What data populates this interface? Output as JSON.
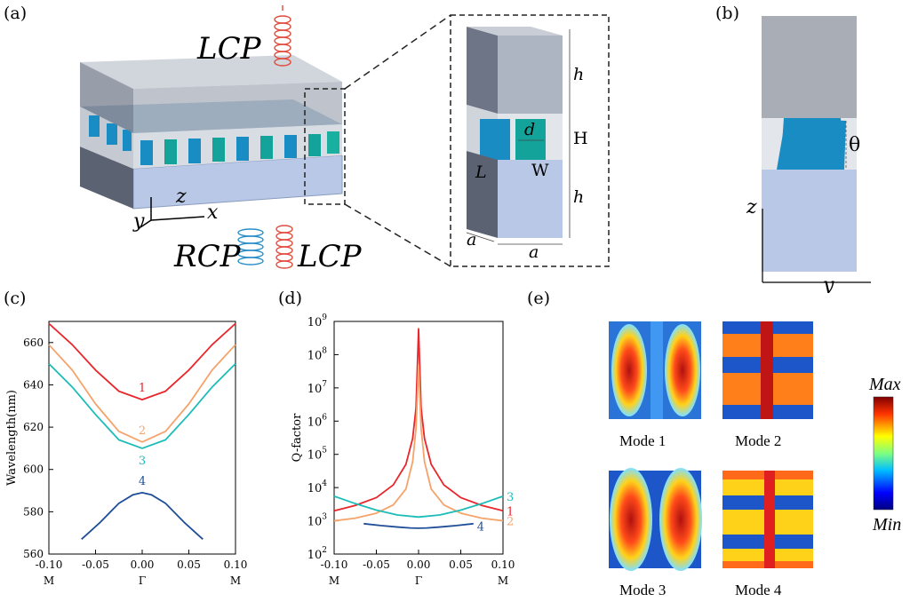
{
  "panels": {
    "a": "(a)",
    "b": "(b)",
    "c": "(c)",
    "d": "(d)",
    "e": "(e)"
  },
  "panel_a": {
    "top_light": "LCP",
    "bottom_left_light": "RCP",
    "bottom_right_light": "LCP",
    "axis_z": "z",
    "axis_x": "x",
    "axis_y": "y",
    "inset_labels": {
      "h_top": "h",
      "H": "H",
      "h_bottom": "h",
      "d": "d",
      "L": "L",
      "W": "W",
      "a_side": "a",
      "a_front": "a"
    }
  },
  "panel_b": {
    "theta": "θ",
    "axis_z": "z",
    "axis_y": "y"
  },
  "chart_data": [
    {
      "panel": "c",
      "type": "line",
      "title": "",
      "xlabel": "",
      "ylabel": "Wavelength(nm)",
      "xlim": [
        -0.1,
        0.1
      ],
      "ylim": [
        560,
        670
      ],
      "x_ticks": [
        -0.1,
        -0.05,
        0.0,
        0.05,
        0.1
      ],
      "x_tick_labels": [
        "-0.10",
        "-0.05",
        "0.00",
        "0.05",
        "0.10"
      ],
      "x_symmetry_labels": [
        "M",
        "Γ",
        "M"
      ],
      "y_ticks": [
        560,
        580,
        600,
        620,
        640,
        660
      ],
      "y_tick_labels": [
        "560",
        "580",
        "600",
        "620",
        "640",
        "660"
      ],
      "series": [
        {
          "name": "1",
          "color": "#e8262b",
          "x": [
            -0.1,
            -0.075,
            -0.05,
            -0.025,
            0,
            0.025,
            0.05,
            0.075,
            0.1
          ],
          "y": [
            669,
            659,
            647,
            637,
            633,
            637,
            647,
            659,
            669
          ]
        },
        {
          "name": "2",
          "color": "#f5a36b",
          "x": [
            -0.1,
            -0.075,
            -0.05,
            -0.025,
            0,
            0.025,
            0.05,
            0.075,
            0.1
          ],
          "y": [
            659,
            647,
            631,
            618,
            613,
            618,
            631,
            647,
            659
          ]
        },
        {
          "name": "3",
          "color": "#1cbdb8",
          "x": [
            -0.1,
            -0.075,
            -0.05,
            -0.025,
            0,
            0.025,
            0.05,
            0.075,
            0.1
          ],
          "y": [
            650,
            639,
            626,
            614,
            610,
            614,
            626,
            639,
            650
          ]
        },
        {
          "name": "4",
          "color": "#1f4e99",
          "x": [
            -0.065,
            -0.045,
            -0.025,
            -0.01,
            0,
            0.01,
            0.025,
            0.045,
            0.065
          ],
          "y": [
            567,
            575,
            584,
            588,
            589,
            588,
            584,
            575,
            567
          ]
        }
      ]
    },
    {
      "panel": "d",
      "type": "line",
      "title": "",
      "xlabel": "",
      "ylabel": "Q-factor",
      "yscale": "log",
      "xlim": [
        -0.1,
        0.1
      ],
      "ylim_exponent": [
        2,
        9
      ],
      "x_ticks": [
        -0.1,
        -0.05,
        0.0,
        0.05,
        0.1
      ],
      "x_tick_labels": [
        "-0.10",
        "-0.05",
        "0.00",
        "0.05",
        "0.10"
      ],
      "x_symmetry_labels": [
        "M",
        "Γ",
        "M"
      ],
      "y_tick_exponents": [
        2,
        3,
        4,
        5,
        6,
        7,
        8,
        9
      ],
      "y_tick_base": "10",
      "series": [
        {
          "name": "1",
          "color": "#e8262b",
          "x": [
            -0.1,
            -0.075,
            -0.05,
            -0.03,
            -0.015,
            -0.007,
            -0.003,
            0,
            0.003,
            0.007,
            0.015,
            0.03,
            0.05,
            0.075,
            0.1
          ],
          "y": [
            2000,
            2900,
            5000,
            12000,
            50000,
            300000,
            2500000,
            600000000,
            2500000,
            300000,
            50000,
            12000,
            5000,
            2900,
            2000
          ]
        },
        {
          "name": "2",
          "color": "#f5a36b",
          "x": [
            -0.1,
            -0.075,
            -0.05,
            -0.03,
            -0.015,
            -0.007,
            -0.003,
            0,
            0.003,
            0.007,
            0.015,
            0.03,
            0.05,
            0.075,
            0.1
          ],
          "y": [
            1000,
            1200,
            1700,
            3000,
            9000,
            60000,
            600000,
            50000000,
            600000,
            60000,
            9000,
            3000,
            1700,
            1200,
            1000
          ]
        },
        {
          "name": "3",
          "color": "#1cbdb8",
          "x": [
            -0.1,
            -0.075,
            -0.05,
            -0.025,
            0,
            0.025,
            0.05,
            0.075,
            0.1
          ],
          "y": [
            5500,
            3300,
            2100,
            1500,
            1300,
            1500,
            2100,
            3300,
            5500
          ]
        },
        {
          "name": "4",
          "color": "#1f4e99",
          "x": [
            -0.065,
            -0.045,
            -0.025,
            -0.01,
            0,
            0.01,
            0.025,
            0.045,
            0.065
          ],
          "y": [
            820,
            720,
            650,
            610,
            600,
            610,
            650,
            720,
            820
          ]
        }
      ]
    }
  ],
  "panel_e": {
    "modes": [
      "Mode 1",
      "Mode 2",
      "Mode 3",
      "Mode 4"
    ],
    "colorbar_max": "Max",
    "colorbar_min": "Min"
  }
}
